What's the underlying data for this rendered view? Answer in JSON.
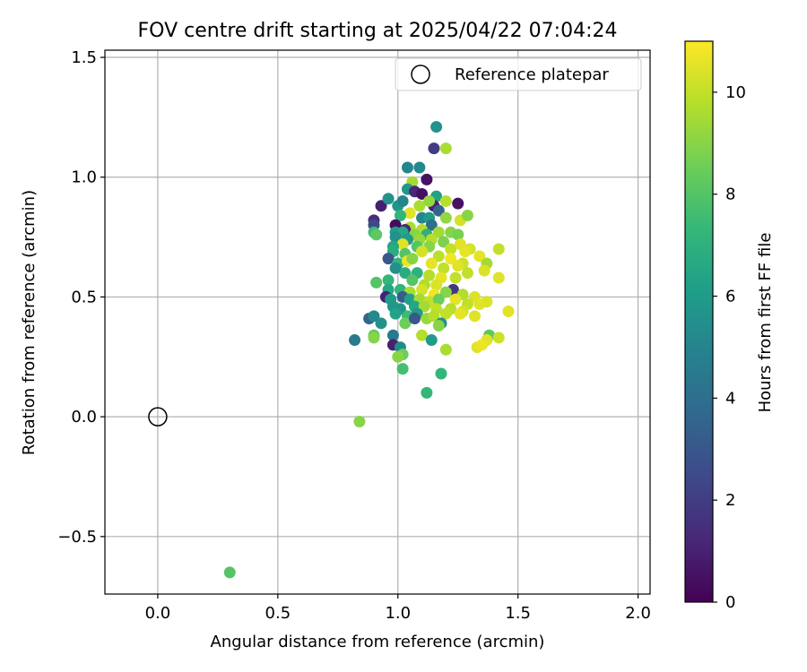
{
  "chart_data": {
    "type": "scatter",
    "title": "FOV centre drift starting at 2025/04/22 07:04:24",
    "xlabel": "Angular distance from reference (arcmin)",
    "ylabel": "Rotation from reference (arcmin)",
    "xlim": [
      -0.22,
      2.05
    ],
    "ylim": [
      -0.74,
      1.53
    ],
    "xticks": [
      0.0,
      0.5,
      1.0,
      1.5,
      2.0
    ],
    "xtick_labels": [
      "0.0",
      "0.5",
      "1.0",
      "1.5",
      "2.0"
    ],
    "yticks": [
      -0.5,
      0.0,
      0.5,
      1.0,
      1.5
    ],
    "ytick_labels": [
      "−0.5",
      "0.0",
      "0.5",
      "1.0",
      "1.5"
    ],
    "grid": true,
    "legend": {
      "position": "top-right",
      "entries": [
        "Reference platepar"
      ]
    },
    "reference_point": {
      "x": 0.0,
      "y": 0.0,
      "label": "Reference platepar"
    },
    "colorbar": {
      "label": "Hours from first FF file",
      "range": [
        0,
        11
      ],
      "ticks": [
        0,
        2,
        4,
        6,
        8,
        10
      ],
      "tick_labels": [
        "0",
        "2",
        "4",
        "6",
        "8",
        "10"
      ],
      "colormap": [
        "#440154",
        "#482878",
        "#3e4989",
        "#31688e",
        "#26828e",
        "#1f9e89",
        "#35b779",
        "#6ece58",
        "#b5de2b",
        "#fde725"
      ]
    },
    "points": [
      [
        1.16,
        1.21,
        5.6
      ],
      [
        1.15,
        1.12,
        2.0
      ],
      [
        1.2,
        1.12,
        9.6
      ],
      [
        1.04,
        1.04,
        5.0
      ],
      [
        1.09,
        1.04,
        5.2
      ],
      [
        1.12,
        0.99,
        0.5
      ],
      [
        1.06,
        0.98,
        9.5
      ],
      [
        1.04,
        0.95,
        5.8
      ],
      [
        1.07,
        0.94,
        1.2
      ],
      [
        1.1,
        0.93,
        0.4
      ],
      [
        1.16,
        0.92,
        6.3
      ],
      [
        1.25,
        0.89,
        0.5
      ],
      [
        0.93,
        0.88,
        1.0
      ],
      [
        1.0,
        0.88,
        5.8
      ],
      [
        1.09,
        0.88,
        9.6
      ],
      [
        1.15,
        0.88,
        1.0
      ],
      [
        0.96,
        0.91,
        5.6
      ],
      [
        1.02,
        0.9,
        5.0
      ],
      [
        1.13,
        0.9,
        9.2
      ],
      [
        1.2,
        0.9,
        9.8
      ],
      [
        1.17,
        0.86,
        3.5
      ],
      [
        1.05,
        0.85,
        10.5
      ],
      [
        1.01,
        0.84,
        7.2
      ],
      [
        1.1,
        0.83,
        5.0
      ],
      [
        1.13,
        0.83,
        6.0
      ],
      [
        1.26,
        0.82,
        10.3
      ],
      [
        1.2,
        0.83,
        9.2
      ],
      [
        1.29,
        0.84,
        9.0
      ],
      [
        0.9,
        0.82,
        1.5
      ],
      [
        0.9,
        0.8,
        2.5
      ],
      [
        0.99,
        0.8,
        0.3
      ],
      [
        1.05,
        0.79,
        9.6
      ],
      [
        1.14,
        0.8,
        4.0
      ],
      [
        1.03,
        0.78,
        1.2
      ],
      [
        1.1,
        0.78,
        9.7
      ],
      [
        0.9,
        0.77,
        7.5
      ],
      [
        0.91,
        0.76,
        8.2
      ],
      [
        0.99,
        0.77,
        6.0
      ],
      [
        1.02,
        0.77,
        6.5
      ],
      [
        1.07,
        0.76,
        9.0
      ],
      [
        1.12,
        0.76,
        7.0
      ],
      [
        1.17,
        0.77,
        9.5
      ],
      [
        1.22,
        0.77,
        9.0
      ],
      [
        1.25,
        0.76,
        8.7
      ],
      [
        0.99,
        0.75,
        5.5
      ],
      [
        1.04,
        0.74,
        6.0
      ],
      [
        1.09,
        0.74,
        9.3
      ],
      [
        1.14,
        0.74,
        9.8
      ],
      [
        1.19,
        0.73,
        8.8
      ],
      [
        1.26,
        0.72,
        10.5
      ],
      [
        1.3,
        0.7,
        10.3
      ],
      [
        1.02,
        0.72,
        10.5
      ],
      [
        0.98,
        0.71,
        6.5
      ],
      [
        1.08,
        0.71,
        8.0
      ],
      [
        1.13,
        0.71,
        9.0
      ],
      [
        1.22,
        0.7,
        10.0
      ],
      [
        1.28,
        0.69,
        10.6
      ],
      [
        1.34,
        0.67,
        10.6
      ],
      [
        1.42,
        0.7,
        10.0
      ],
      [
        0.98,
        0.69,
        6.8
      ],
      [
        1.03,
        0.68,
        8.0
      ],
      [
        1.1,
        0.69,
        10.3
      ],
      [
        1.17,
        0.67,
        9.9
      ],
      [
        1.22,
        0.66,
        10.8
      ],
      [
        1.27,
        0.64,
        10.2
      ],
      [
        1.37,
        0.64,
        9.5
      ],
      [
        1.36,
        0.61,
        10.4
      ],
      [
        0.96,
        0.66,
        3.0
      ],
      [
        1.0,
        0.64,
        7.2
      ],
      [
        1.04,
        0.65,
        10.7
      ],
      [
        1.06,
        0.66,
        9.0
      ],
      [
        1.14,
        0.64,
        10.6
      ],
      [
        1.19,
        0.62,
        10.0
      ],
      [
        1.25,
        0.63,
        10.5
      ],
      [
        1.42,
        0.58,
        10.5
      ],
      [
        0.99,
        0.62,
        5.5
      ],
      [
        1.03,
        0.6,
        6.8
      ],
      [
        1.08,
        0.6,
        7.0
      ],
      [
        1.13,
        0.59,
        9.8
      ],
      [
        1.18,
        0.58,
        10.6
      ],
      [
        1.24,
        0.58,
        10.0
      ],
      [
        1.29,
        0.6,
        10.0
      ],
      [
        0.96,
        0.57,
        7.3
      ],
      [
        1.06,
        0.57,
        8.0
      ],
      [
        1.11,
        0.55,
        9.7
      ],
      [
        1.16,
        0.55,
        10.4
      ],
      [
        1.23,
        0.53,
        1.8
      ],
      [
        0.91,
        0.56,
        8.0
      ],
      [
        0.96,
        0.53,
        6.5
      ],
      [
        1.01,
        0.53,
        7.2
      ],
      [
        1.05,
        0.52,
        9.6
      ],
      [
        1.1,
        0.53,
        10.3
      ],
      [
        1.15,
        0.51,
        10.8
      ],
      [
        1.2,
        0.52,
        9.0
      ],
      [
        1.27,
        0.51,
        9.7
      ],
      [
        1.32,
        0.5,
        10.4
      ],
      [
        1.37,
        0.48,
        10.4
      ],
      [
        0.95,
        0.5,
        1.0
      ],
      [
        0.97,
        0.49,
        6.0
      ],
      [
        1.02,
        0.5,
        3.2
      ],
      [
        1.05,
        0.49,
        6.2
      ],
      [
        1.09,
        0.49,
        9.5
      ],
      [
        1.13,
        0.48,
        10.0
      ],
      [
        1.17,
        0.49,
        8.5
      ],
      [
        1.24,
        0.49,
        10.6
      ],
      [
        1.29,
        0.47,
        10.0
      ],
      [
        1.34,
        0.47,
        10.5
      ],
      [
        0.98,
        0.46,
        5.8
      ],
      [
        1.01,
        0.45,
        5.7
      ],
      [
        1.07,
        0.46,
        6.5
      ],
      [
        1.11,
        0.46,
        9.5
      ],
      [
        1.16,
        0.45,
        10.0
      ],
      [
        1.22,
        0.45,
        9.8
      ],
      [
        1.27,
        0.44,
        10.3
      ],
      [
        1.46,
        0.44,
        10.5
      ],
      [
        0.88,
        0.41,
        3.5
      ],
      [
        0.9,
        0.42,
        5.2
      ],
      [
        0.99,
        0.43,
        6.3
      ],
      [
        1.04,
        0.42,
        7.5
      ],
      [
        1.08,
        0.43,
        6.0
      ],
      [
        1.12,
        0.41,
        9.3
      ],
      [
        1.15,
        0.42,
        9.8
      ],
      [
        1.2,
        0.43,
        10.0
      ],
      [
        1.26,
        0.43,
        10.6
      ],
      [
        1.32,
        0.42,
        10.5
      ],
      [
        0.93,
        0.39,
        5.5
      ],
      [
        1.03,
        0.39,
        8.5
      ],
      [
        1.07,
        0.41,
        3.0
      ],
      [
        1.18,
        0.39,
        5.5
      ],
      [
        1.17,
        0.38,
        9.0
      ],
      [
        0.98,
        0.34,
        4.5
      ],
      [
        1.1,
        0.34,
        9.8
      ],
      [
        1.14,
        0.32,
        6.0
      ],
      [
        1.38,
        0.34,
        8.2
      ],
      [
        1.42,
        0.33,
        10.2
      ],
      [
        1.37,
        0.32,
        10.5
      ],
      [
        0.82,
        0.32,
        4.5
      ],
      [
        0.9,
        0.34,
        8.3
      ],
      [
        0.98,
        0.3,
        1.0
      ],
      [
        1.01,
        0.29,
        5.3
      ],
      [
        1.33,
        0.29,
        10.5
      ],
      [
        1.35,
        0.3,
        10.7
      ],
      [
        1.2,
        0.28,
        9.6
      ],
      [
        0.9,
        0.33,
        9.0
      ],
      [
        1.02,
        0.26,
        8.5
      ],
      [
        1.0,
        0.25,
        9.0
      ],
      [
        1.02,
        0.2,
        7.7
      ],
      [
        1.18,
        0.18,
        7.3
      ],
      [
        1.12,
        0.1,
        7.3
      ],
      [
        0.84,
        -0.02,
        9.0
      ],
      [
        0.3,
        -0.65,
        8.0
      ]
    ]
  }
}
